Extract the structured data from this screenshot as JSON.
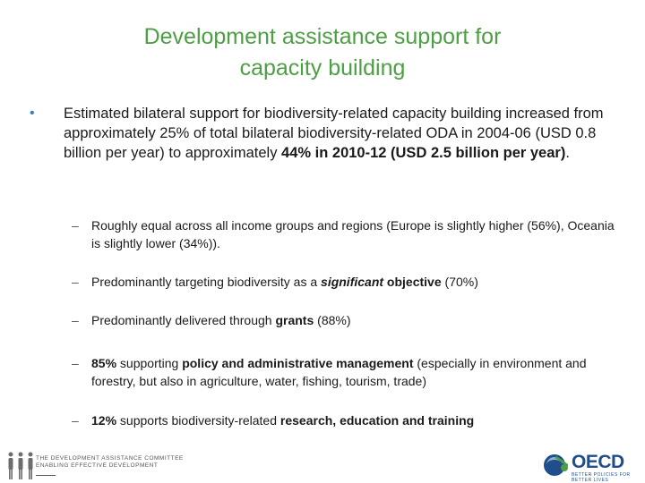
{
  "slide": {
    "title_line1": "Development assistance support for",
    "title_line2": "capacity building"
  },
  "main_bullet": {
    "marker": "•",
    "text_part1": "Estimated bilateral support for biodiversity-related capacity building increased from approximately 25% of total bilateral biodiversity-related ODA in 2004-06 (USD 0.8 billion per year) to approximately ",
    "text_bold": "44% in 2010-12 (USD 2.5 billion per year)",
    "text_end": "."
  },
  "sub_bullets": {
    "marker": "–",
    "b1": {
      "text": "Roughly equal across all income groups and regions (Europe is slightly higher (56%), Oceania is slightly lower (34%))."
    },
    "b2": {
      "pre": "Predominantly targeting biodiversity as a ",
      "bold_italic": "significant",
      "bold": " objective",
      "post": " (70%)"
    },
    "b3": {
      "pre": "Predominantly delivered through ",
      "bold": "grants",
      "post": " (88%)"
    },
    "b4": {
      "bold1": "85%",
      "mid": " supporting ",
      "bold2": "policy and administrative management",
      "post": " (especially in environment and forestry, but also in agriculture, water, fishing, tourism, trade)"
    },
    "b5": {
      "bold1": "12%",
      "mid": " supports biodiversity-related ",
      "bold2": "research, education and training"
    }
  },
  "footer": {
    "dac_line1": "THE DEVELOPMENT ASSISTANCE COMMITTEE",
    "dac_line2": "ENABLING EFFECTIVE DEVELOPMENT",
    "oecd_name": "OECD",
    "oecd_tagline": "BETTER POLICIES FOR BETTER LIVES",
    "accent_green": "#4e9e45",
    "accent_blue": "#1f4e8c"
  }
}
